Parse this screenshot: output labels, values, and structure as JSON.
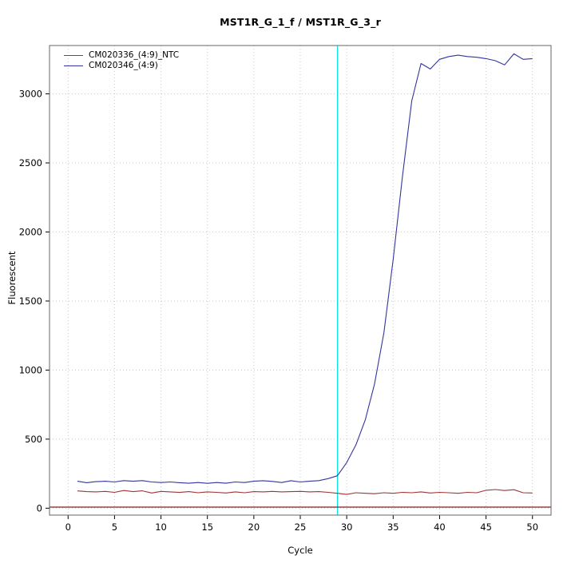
{
  "chart_data": {
    "type": "line",
    "title": "MST1R_G_1_f / MST1R_G_3_r",
    "xlabel": "Cycle",
    "ylabel": "Fluorescent",
    "xlim": [
      0,
      50
    ],
    "ylim": [
      0,
      3350
    ],
    "xticks": [
      0,
      5,
      10,
      15,
      20,
      25,
      30,
      35,
      40,
      45,
      50
    ],
    "yticks": [
      0,
      500,
      1000,
      1500,
      2000,
      2500,
      3000
    ],
    "grid": "dotted",
    "legend_position": "top-left",
    "colors": {
      "grid": "#c8c8c8",
      "plot_border": "#666666",
      "axis": "#000000"
    },
    "ct_line": {
      "x": 29,
      "color": "#00e5e5"
    },
    "threshold_line": {
      "y": 8,
      "color": "#7f1f1f"
    },
    "x": [
      1,
      2,
      3,
      4,
      5,
      6,
      7,
      8,
      9,
      10,
      11,
      12,
      13,
      14,
      15,
      16,
      17,
      18,
      19,
      20,
      21,
      22,
      23,
      24,
      25,
      26,
      27,
      28,
      29,
      30,
      31,
      32,
      33,
      34,
      35,
      36,
      37,
      38,
      39,
      40,
      41,
      42,
      43,
      44,
      45,
      46,
      47,
      48,
      49,
      50
    ],
    "series": [
      {
        "name": "CM020336_(4:9)_NTC",
        "color": "#a03434",
        "values": [
          125,
          120,
          118,
          122,
          115,
          128,
          120,
          126,
          110,
          122,
          118,
          114,
          120,
          112,
          118,
          115,
          110,
          118,
          112,
          120,
          118,
          122,
          118,
          120,
          122,
          118,
          120,
          115,
          108,
          100,
          112,
          108,
          105,
          112,
          108,
          115,
          112,
          118,
          110,
          115,
          112,
          108,
          115,
          112,
          130,
          135,
          128,
          134,
          112,
          110
        ]
      },
      {
        "name": "CM020346_(4:9)",
        "color": "#34349e",
        "values": [
          195,
          185,
          192,
          195,
          190,
          200,
          195,
          200,
          190,
          186,
          190,
          185,
          181,
          186,
          180,
          186,
          181,
          190,
          186,
          195,
          199,
          194,
          186,
          199,
          190,
          195,
          200,
          214,
          235,
          330,
          460,
          640,
          900,
          1270,
          1800,
          2400,
          2950,
          3220,
          3180,
          3250,
          3270,
          3280,
          3270,
          3265,
          3255,
          3240,
          3210,
          3290,
          3250,
          3255
        ]
      }
    ]
  }
}
